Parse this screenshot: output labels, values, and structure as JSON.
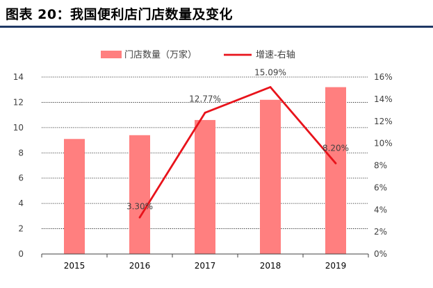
{
  "figure_title": "图表 20：我国便利店门店数量及变化",
  "chart_data": {
    "type": "bar",
    "categories": [
      "2015",
      "2016",
      "2017",
      "2018",
      "2019"
    ],
    "series": [
      {
        "name": "门店数量（万家）",
        "kind": "bar",
        "axis": "left",
        "color": "#ff7f7f",
        "values": [
          9.1,
          9.4,
          10.6,
          12.2,
          13.2
        ]
      },
      {
        "name": "增速-右轴",
        "kind": "line",
        "axis": "right",
        "color": "#e8131b",
        "values": [
          null,
          3.3,
          12.77,
          15.09,
          8.2
        ],
        "labels": [
          "",
          "3.30%",
          "12.77%",
          "15.09%",
          "8.20%"
        ]
      }
    ],
    "y_left": {
      "lim": [
        0,
        14
      ],
      "ticks": [
        "0",
        "2",
        "4",
        "6",
        "8",
        "10",
        "12",
        "14"
      ]
    },
    "y_right": {
      "lim": [
        0,
        16
      ],
      "ticks": [
        "0%",
        "2%",
        "4%",
        "6%",
        "8%",
        "10%",
        "12%",
        "14%",
        "16%"
      ]
    },
    "grid": true,
    "legend": "top-center"
  }
}
